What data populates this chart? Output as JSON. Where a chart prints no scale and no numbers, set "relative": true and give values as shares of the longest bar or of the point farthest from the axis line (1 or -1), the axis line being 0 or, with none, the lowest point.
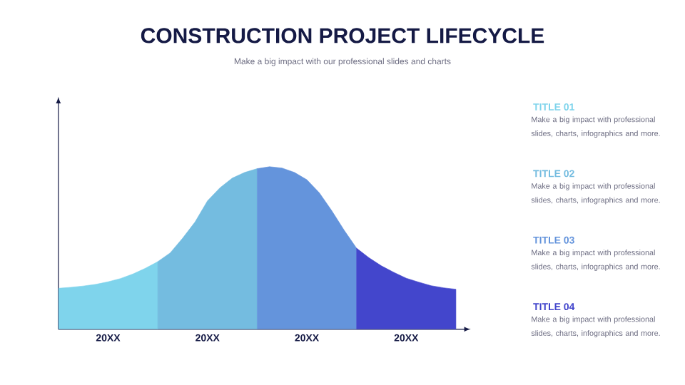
{
  "chart_data": [
    {
      "type": "area",
      "title": "CONSTRUCTION PROJECT LIFECYCLE",
      "subtitle": "Make a big impact with our professional slides and charts",
      "relative": true,
      "categories": [
        null,
        null,
        null,
        null,
        "20XX",
        null,
        null,
        null,
        null,
        null,
        null,
        null,
        "20XX",
        null,
        null,
        null,
        null,
        null,
        null,
        null,
        "20XX",
        null,
        null,
        null,
        null,
        null,
        null,
        null,
        "20XX",
        null,
        null,
        null,
        null
      ],
      "series": [
        {
          "color": "#7fd4ec",
          "values": [
            0.252,
            0.258,
            0.266,
            0.276,
            0.292,
            0.312,
            0.34,
            0.375,
            0.416,
            null,
            null,
            null,
            null,
            null,
            null,
            null,
            null,
            null,
            null,
            null,
            null,
            null,
            null,
            null,
            null,
            null,
            null,
            null,
            null,
            null,
            null,
            null,
            null
          ]
        },
        {
          "color": "#74bce0",
          "values": [
            null,
            null,
            null,
            null,
            null,
            null,
            null,
            null,
            0.416,
            0.47,
            0.56,
            0.66,
            0.79,
            0.87,
            0.93,
            0.965,
            0.988,
            null,
            null,
            null,
            null,
            null,
            null,
            null,
            null,
            null,
            null,
            null,
            null,
            null,
            null,
            null,
            null
          ]
        },
        {
          "color": "#6494dc",
          "values": [
            null,
            null,
            null,
            null,
            null,
            null,
            null,
            null,
            null,
            null,
            null,
            null,
            null,
            null,
            null,
            null,
            0.988,
            1,
            0.992,
            0.965,
            0.92,
            0.84,
            0.73,
            0.61,
            0.499,
            null,
            null,
            null,
            null,
            null,
            null,
            null,
            null
          ]
        },
        {
          "color": "#4346cc",
          "values": [
            null,
            null,
            null,
            null,
            null,
            null,
            null,
            null,
            null,
            null,
            null,
            null,
            null,
            null,
            null,
            null,
            null,
            null,
            null,
            null,
            null,
            null,
            null,
            null,
            0.499,
            0.44,
            0.39,
            0.35,
            0.314,
            0.29,
            0.268,
            0.255,
            0.246
          ]
        }
      ]
    },
    {
      "type": "other",
      "annotations": [
        "TITLE 01",
        "Make a big impact with professional slides, charts, infographics and more.",
        "TITLE 02",
        "Make a big impact with professional slides, charts, infographics and more.",
        "TITLE 03",
        "Make a big impact with professional slides, charts, infographics and more.",
        "TITLE 04",
        "Make a big impact with professional slides, charts, infographics and more."
      ]
    }
  ]
}
